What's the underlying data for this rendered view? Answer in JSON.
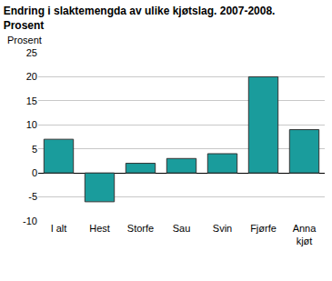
{
  "chart_data": {
    "type": "bar",
    "title": "Endring i slaktemengda av ulike kjøtslag. 2007-2008.\nProsent",
    "y_label": "Prosent",
    "categories": [
      "I alt",
      "Hest",
      "Storfe",
      "Sau",
      "Svin",
      "Fjørfe",
      "Anna kjøt"
    ],
    "values": [
      7,
      -6,
      2,
      3,
      4,
      20,
      9
    ],
    "color": "#1a9c9c",
    "ylim": [
      -10,
      25
    ],
    "yticks": [
      -10,
      -5,
      0,
      5,
      10,
      15,
      20,
      25
    ],
    "grid": true
  }
}
